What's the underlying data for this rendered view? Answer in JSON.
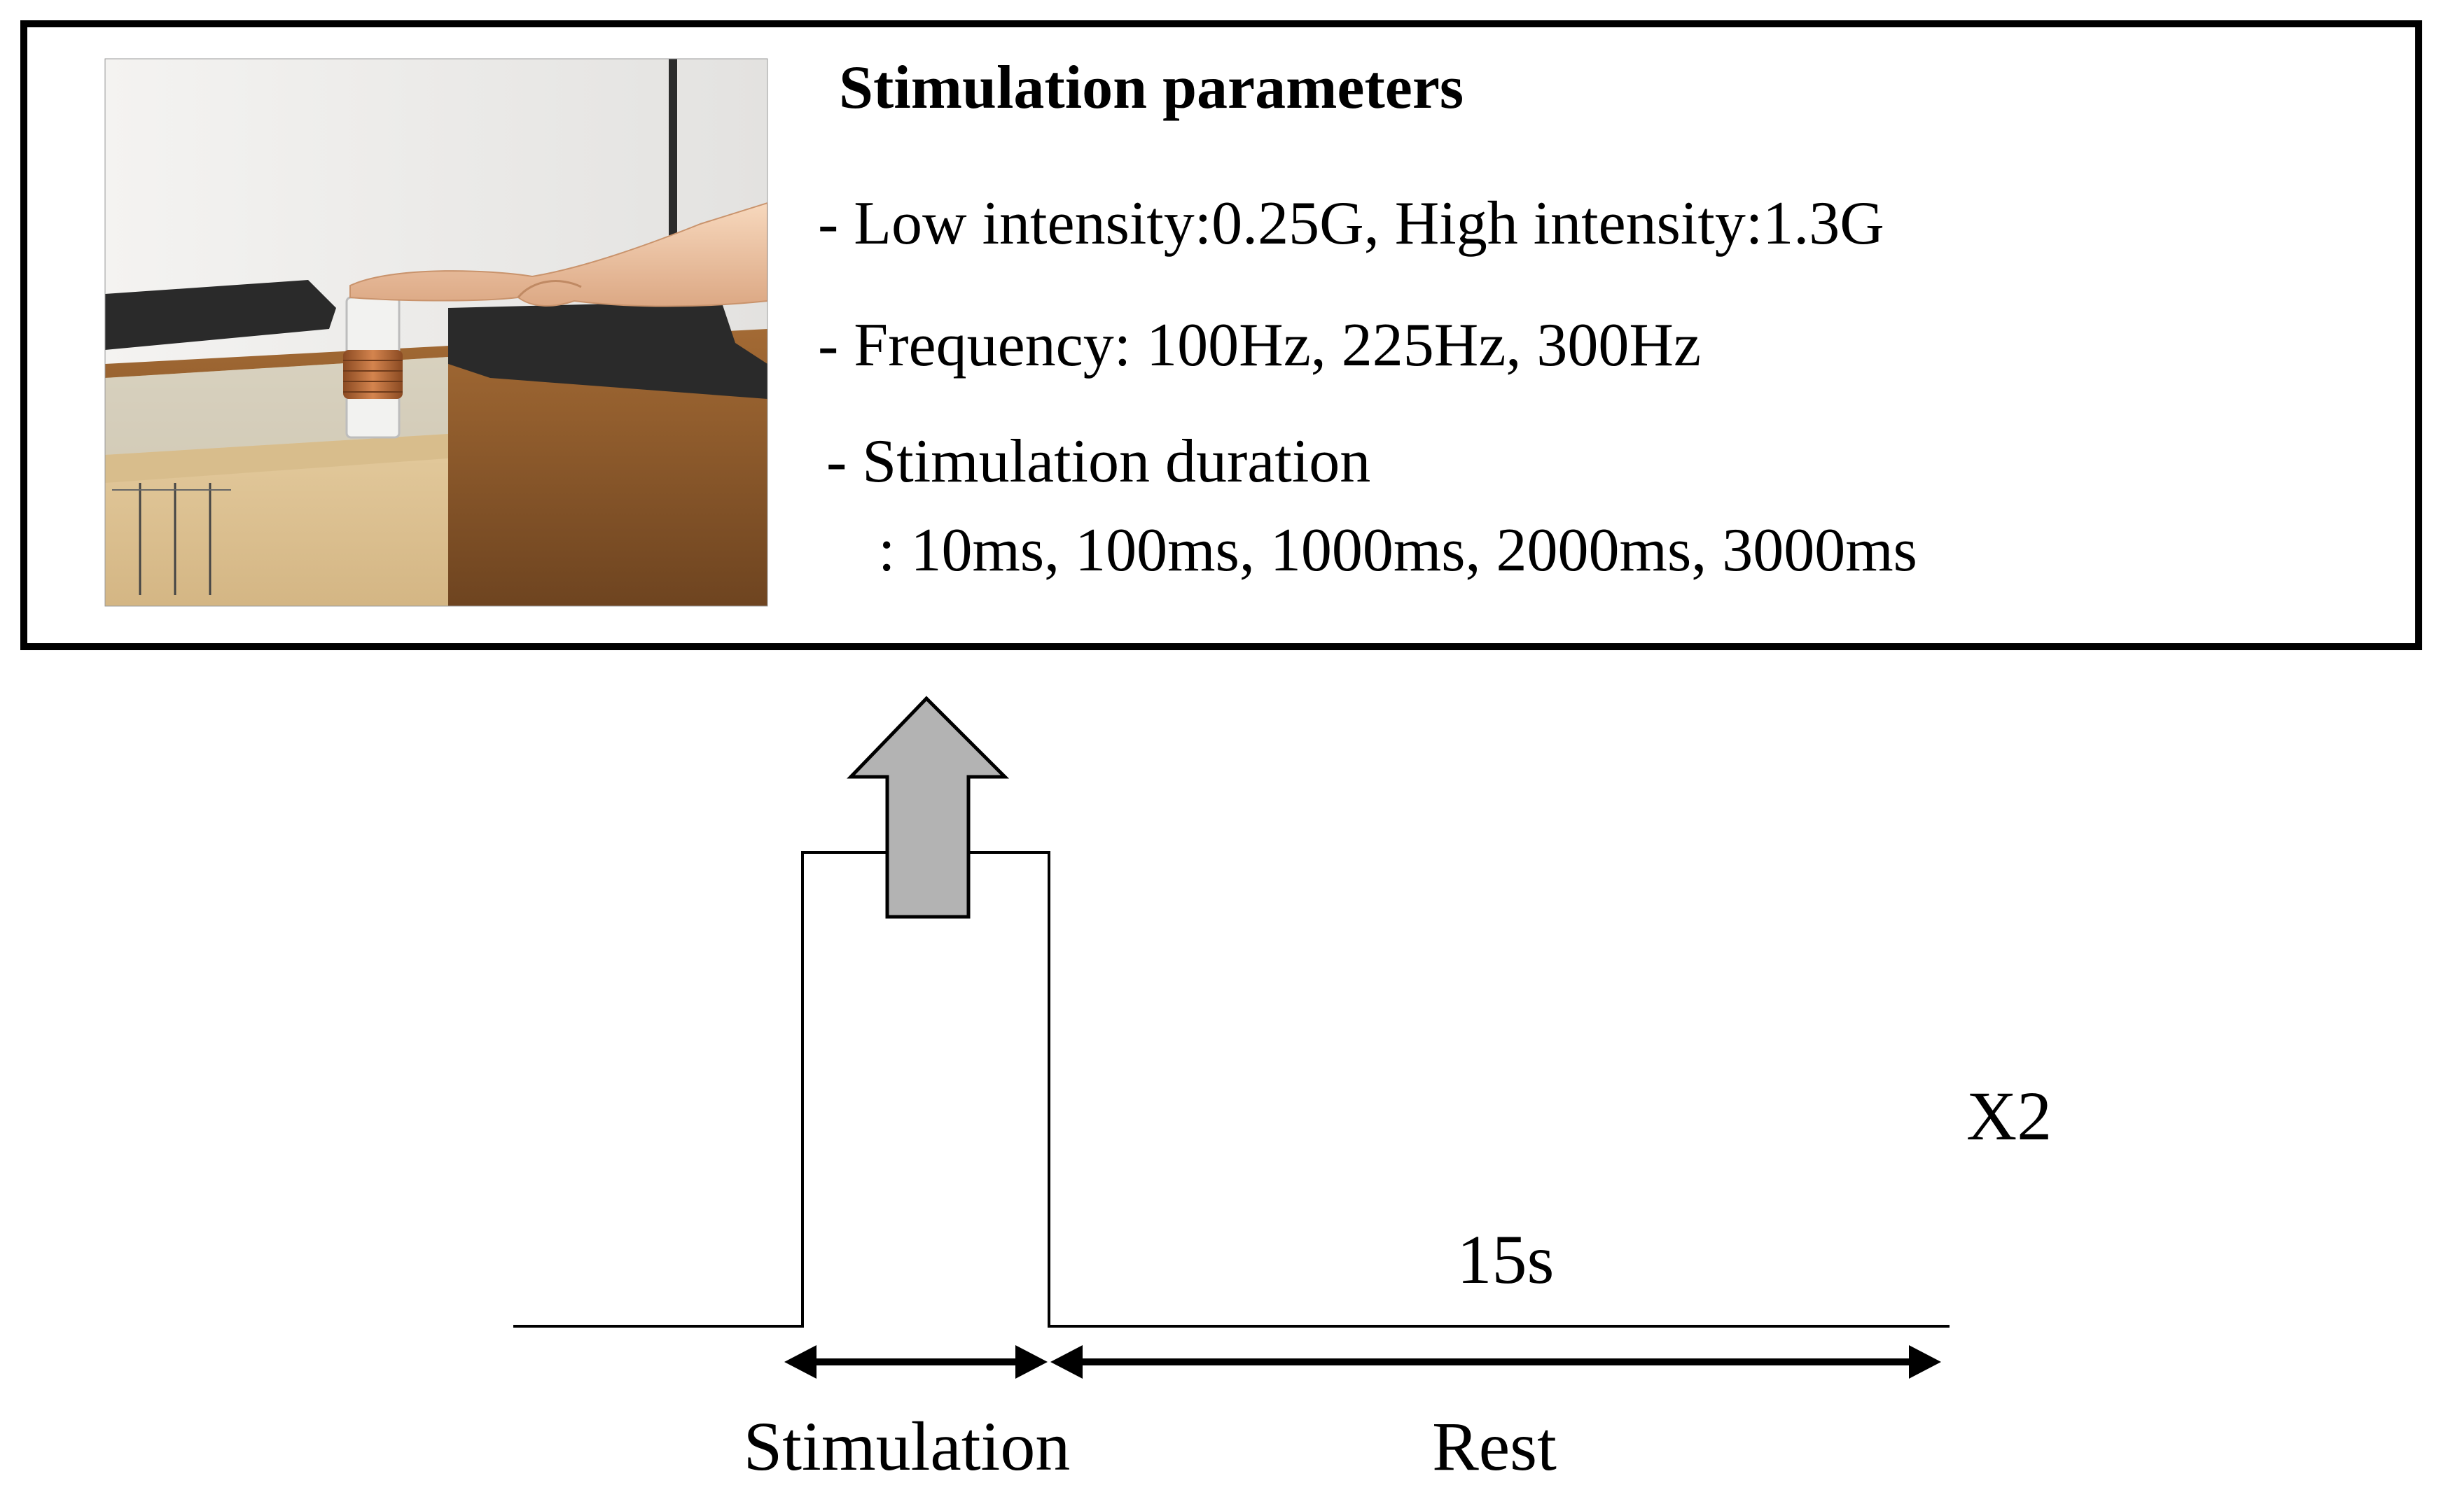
{
  "parameters_panel": {
    "title": "Stimulation parameters",
    "lines": [
      "- Low intensity:0.25G, High intensity:1.3G",
      "- Frequency: 100Hz, 225Hz, 300Hz",
      "- Stimulation duration",
      ": 10ms, 100ms, 1000ms, 2000ms, 3000ms"
    ]
  },
  "timeline": {
    "repeat_label": "X2",
    "rest_duration_label": "15s",
    "stimulation_label": "Stimulation",
    "rest_label": "Rest"
  },
  "colors": {
    "stroke": "#000000",
    "arrow_fill": "#b3b3b3",
    "photo_wall": "#ecebe9",
    "photo_table": "#8a5a2e",
    "photo_box": "#e2c89a",
    "photo_felt": "#2a2a2a",
    "photo_coil": "#b5653a",
    "photo_skin": "#efc7a6"
  }
}
